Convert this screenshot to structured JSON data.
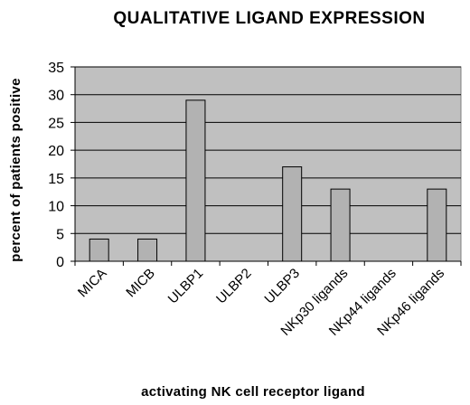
{
  "chart_data": {
    "type": "bar",
    "title": "QUALITATIVE LIGAND EXPRESSION",
    "xlabel": "activating NK cell receptor ligand",
    "ylabel": "percent of patients positive",
    "categories": [
      "MICA",
      "MICB",
      "ULBP1",
      "ULBP2",
      "ULBP3",
      "NKp30 ligands",
      "NKp44 ligands",
      "NKp46 ligands"
    ],
    "values": [
      4,
      4,
      29,
      0,
      17,
      13,
      0,
      13
    ],
    "ylim": [
      0,
      35
    ],
    "yticks": [
      "0",
      "5",
      "10",
      "15",
      "20",
      "25",
      "30",
      "35"
    ],
    "grid": true,
    "legend": "none",
    "colors": {
      "plot_background": "#c0c0c0",
      "bar_fill": "#b2b2b2",
      "bar_stroke": "#000000",
      "gridline": "#000000"
    }
  }
}
